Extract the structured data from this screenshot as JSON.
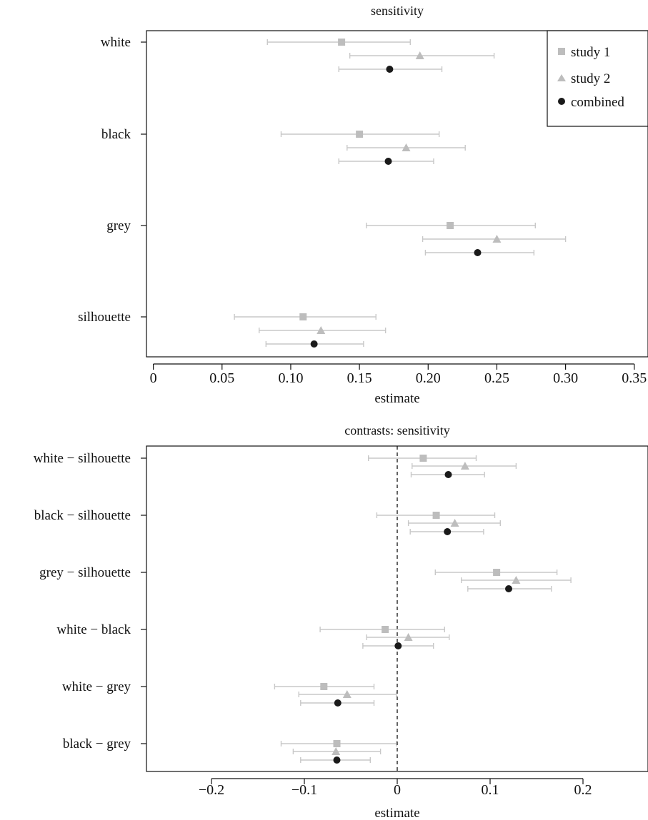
{
  "chart_data": [
    {
      "type": "scatter",
      "title": "sensitivity",
      "xlabel": "estimate",
      "ylabel": "",
      "xlim": [
        -0.005,
        0.36
      ],
      "xticks": [
        0,
        0.05,
        0.1,
        0.15,
        0.2,
        0.25,
        0.3,
        0.35
      ],
      "xtick_labels": [
        "0",
        "0.05",
        "0.10",
        "0.15",
        "0.20",
        "0.25",
        "0.30",
        "0.35"
      ],
      "categories": [
        "white",
        "black",
        "grey",
        "silhouette"
      ],
      "grid": false,
      "legend_position": "top-right",
      "series": [
        {
          "name": "study 1",
          "marker": "square",
          "color": "#bdbdbd",
          "estimate": [
            0.137,
            0.15,
            0.216,
            0.109
          ],
          "lower": [
            0.083,
            0.093,
            0.155,
            0.059
          ],
          "upper": [
            0.187,
            0.208,
            0.278,
            0.162
          ]
        },
        {
          "name": "study 2",
          "marker": "triangle",
          "color": "#bdbdbd",
          "estimate": [
            0.194,
            0.184,
            0.25,
            0.122
          ],
          "lower": [
            0.143,
            0.141,
            0.196,
            0.077
          ],
          "upper": [
            0.248,
            0.227,
            0.3,
            0.169
          ]
        },
        {
          "name": "combined",
          "marker": "circle",
          "color": "#1a1a1a",
          "estimate": [
            0.172,
            0.171,
            0.236,
            0.117
          ],
          "lower": [
            0.135,
            0.135,
            0.198,
            0.082
          ],
          "upper": [
            0.21,
            0.204,
            0.277,
            0.153
          ]
        }
      ]
    },
    {
      "type": "scatter",
      "title": "contrasts: sensitivity",
      "xlabel": "estimate",
      "ylabel": "",
      "xlim": [
        -0.27,
        0.27
      ],
      "xticks": [
        -0.2,
        -0.1,
        0,
        0.1,
        0.2
      ],
      "xtick_labels": [
        "−0.2",
        "−0.1",
        "0",
        "0.1",
        "0.2"
      ],
      "reference_line_x": 0,
      "categories": [
        "white − silhouette",
        "black − silhouette",
        "grey − silhouette",
        "white − black",
        "white − grey",
        "black − grey"
      ],
      "grid": false,
      "series": [
        {
          "name": "study 1",
          "marker": "square",
          "color": "#bdbdbd",
          "estimate": [
            0.028,
            0.042,
            0.107,
            -0.013,
            -0.079,
            -0.065
          ],
          "lower": [
            -0.031,
            -0.022,
            0.041,
            -0.083,
            -0.132,
            -0.125
          ],
          "upper": [
            0.085,
            0.105,
            0.172,
            0.051,
            -0.025,
            -0.001
          ]
        },
        {
          "name": "study 2",
          "marker": "triangle",
          "color": "#bdbdbd",
          "estimate": [
            0.073,
            0.062,
            0.128,
            0.012,
            -0.054,
            -0.066
          ],
          "lower": [
            0.016,
            0.012,
            0.069,
            -0.033,
            -0.106,
            -0.112
          ],
          "upper": [
            0.128,
            0.111,
            0.187,
            0.056,
            -0.001,
            -0.018
          ]
        },
        {
          "name": "combined",
          "marker": "circle",
          "color": "#1a1a1a",
          "estimate": [
            0.055,
            0.054,
            0.12,
            0.001,
            -0.064,
            -0.065
          ],
          "lower": [
            0.015,
            0.014,
            0.076,
            -0.037,
            -0.104,
            -0.104
          ],
          "upper": [
            0.094,
            0.093,
            0.166,
            0.039,
            -0.025,
            -0.029
          ]
        }
      ]
    }
  ]
}
